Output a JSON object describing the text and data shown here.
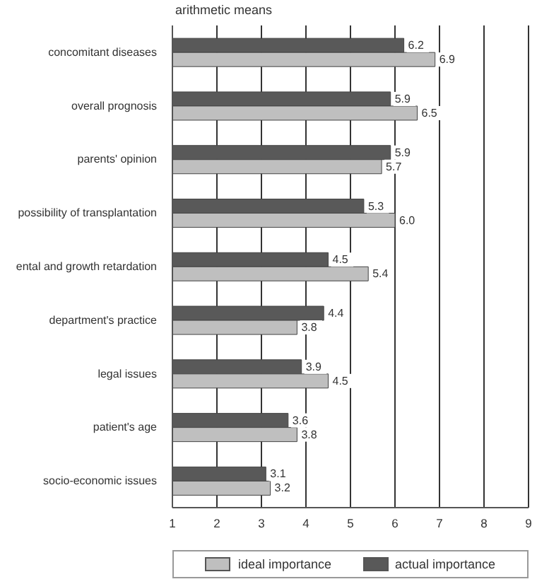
{
  "chart_data": {
    "type": "bar",
    "orientation": "horizontal",
    "xlabel": "arithmetic means",
    "categories": [
      "concomitant diseases",
      "overall prognosis",
      "parents' opinion",
      "possibility of transplantation",
      "ental and growth retardation",
      "department's practice",
      "legal issues",
      "patient's age",
      "socio-economic issues"
    ],
    "series": [
      {
        "name": "ideal importance",
        "color": "#bfbfbf",
        "values": [
          6.9,
          6.5,
          5.7,
          6.0,
          5.4,
          3.8,
          4.5,
          3.8,
          3.2
        ],
        "value_labels": [
          "6.9",
          "6.5",
          "5.7",
          "6.0",
          "5.4",
          "3.8",
          "4.5",
          "3.8",
          "3.2"
        ]
      },
      {
        "name": "actual importance",
        "color": "#595959",
        "values": [
          6.2,
          5.9,
          5.9,
          5.3,
          4.5,
          4.4,
          3.9,
          3.6,
          3.1
        ],
        "value_labels": [
          "6.2",
          "5.9",
          "5.9",
          "5.3",
          "4.5",
          "4.4",
          "3.9",
          "3.6",
          "3.1"
        ]
      }
    ],
    "xlim": [
      1,
      9
    ],
    "xticks": [
      1,
      2,
      3,
      4,
      5,
      6,
      7,
      8,
      9
    ],
    "grid": "x",
    "legend": "bottom"
  }
}
